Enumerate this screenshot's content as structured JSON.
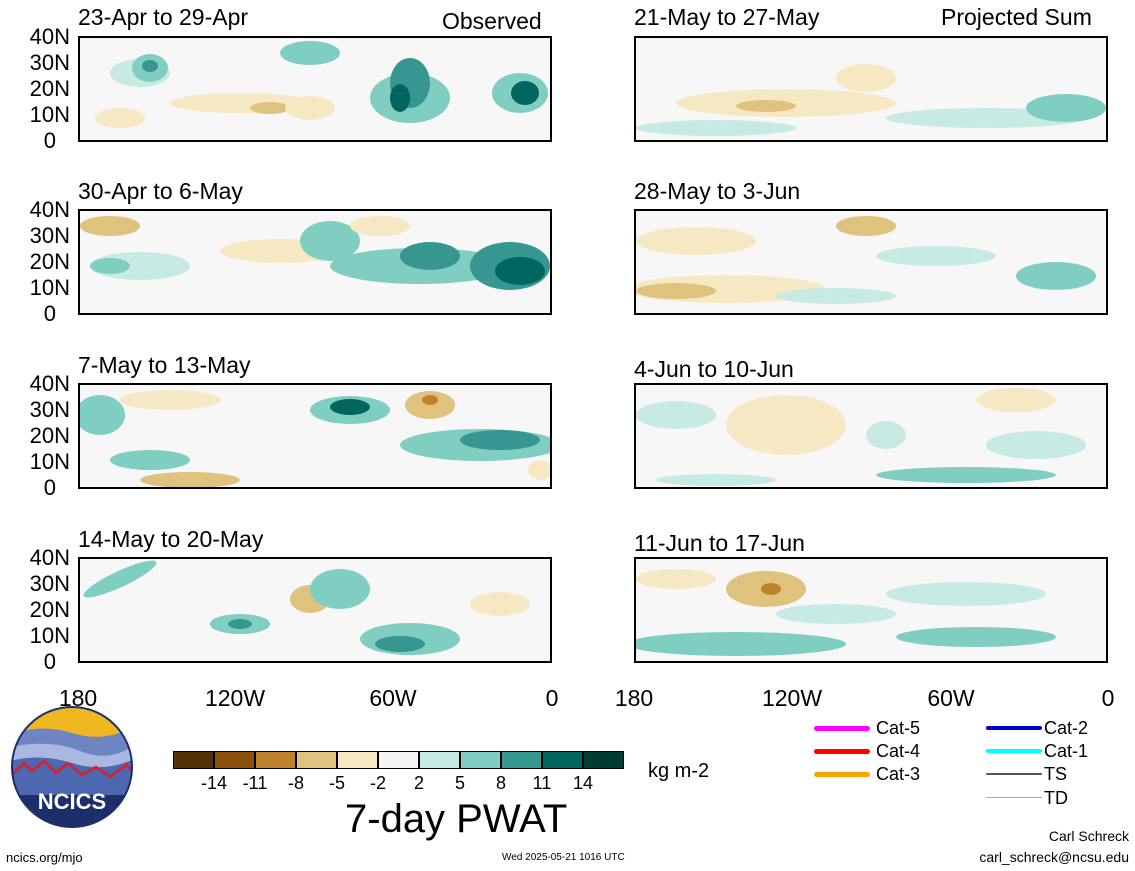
{
  "labels": {
    "observed": "Observed",
    "projected": "Projected Sum",
    "ylabels": [
      "40N",
      "30N",
      "20N",
      "10N",
      "0"
    ],
    "xlabels": [
      "180",
      "120W",
      "60W",
      "0"
    ]
  },
  "panels_left": [
    {
      "title": "23-Apr to 29-Apr"
    },
    {
      "title": "30-Apr to 6-May"
    },
    {
      "title": "7-May to 13-May"
    },
    {
      "title": "14-May to 20-May"
    }
  ],
  "panels_right": [
    {
      "title": "21-May to 27-May"
    },
    {
      "title": "28-May to 3-Jun"
    },
    {
      "title": "4-Jun to 10-Jun"
    },
    {
      "title": "11-Jun to 17-Jun"
    }
  ],
  "colorbar": {
    "colors": [
      "#543005",
      "#8c510a",
      "#bf812d",
      "#dfc27d",
      "#f6e8c3",
      "#f5f5f5",
      "#c7eae5",
      "#80cdc1",
      "#35978f",
      "#01665e",
      "#003c30"
    ],
    "ticks": [
      "-14",
      "-11",
      "-8",
      "-5",
      "-2",
      "2",
      "5",
      "8",
      "11",
      "14"
    ],
    "unit": "kg m-2",
    "title": "7-day PWAT"
  },
  "legend": [
    {
      "label": "Cat-5",
      "color": "#ff00ff"
    },
    {
      "label": "Cat-4",
      "color": "#ff0000"
    },
    {
      "label": "Cat-3",
      "color": "#ffa500"
    },
    {
      "label": "Cat-2",
      "color": "#0000cc"
    },
    {
      "label": "Cat-1",
      "color": "#00ffff"
    },
    {
      "label": "TS",
      "color": "#555555"
    },
    {
      "label": "TD",
      "color": "#aaaaaa"
    }
  ],
  "footer": {
    "left": "ncics.org/mjo",
    "center": "Wed 2025-05-21 1016 UTC",
    "author": "Carl Schreck",
    "email": "carl_schreck@ncsu.edu",
    "logo_text": "NCICS"
  }
}
